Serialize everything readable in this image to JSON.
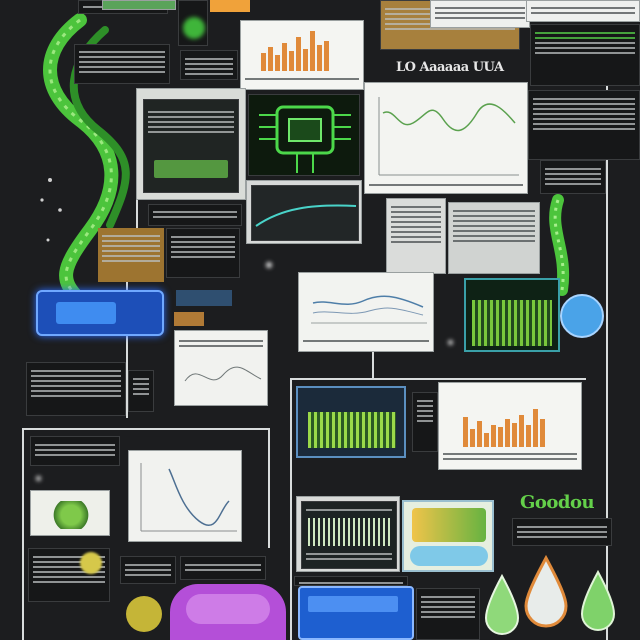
{
  "title_text": "LO Aaaaaa UUA",
  "bottom_right_text": "Goodou",
  "colors": {
    "background": "#1c1d1f",
    "accent_green": "#5dd54a",
    "accent_orange": "#e08a3a",
    "accent_blue": "#1f5fd0",
    "accent_purple": "#b44fd8"
  },
  "icons": [
    "dna-helix-icon",
    "gear-icon",
    "pcb-chip-icon",
    "test-tube-icon",
    "petri-dish-icon",
    "drop-icon"
  ]
}
